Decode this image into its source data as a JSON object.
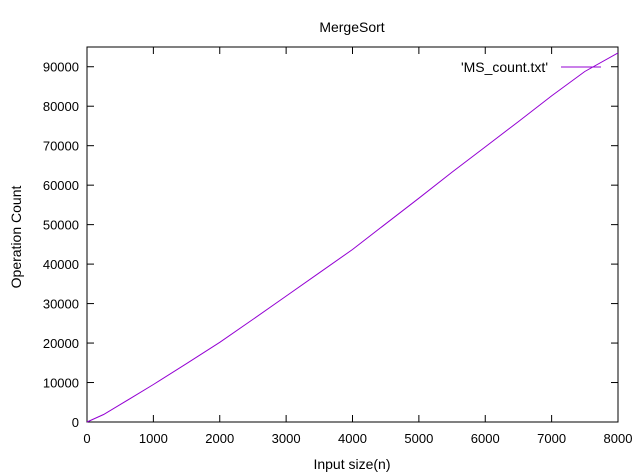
{
  "chart_data": {
    "type": "line",
    "title": "MergeSort",
    "xlabel": "Input size(n)",
    "ylabel": "Operation Count",
    "xlim": [
      0,
      8000
    ],
    "ylim": [
      0,
      95000
    ],
    "xticks": [
      0,
      1000,
      2000,
      3000,
      4000,
      5000,
      6000,
      7000,
      8000
    ],
    "yticks": [
      0,
      10000,
      20000,
      30000,
      40000,
      50000,
      60000,
      70000,
      80000,
      90000
    ],
    "grid": false,
    "legend_position": "top-right",
    "series": [
      {
        "name": "'MS_count.txt'",
        "color": "#9400d3",
        "x": [
          0,
          250,
          500,
          1000,
          1500,
          2000,
          2500,
          3000,
          3500,
          4000,
          4500,
          5000,
          5500,
          6000,
          6500,
          7000,
          7500,
          8000
        ],
        "y": [
          0,
          1900,
          4400,
          9500,
          14800,
          20200,
          26000,
          31900,
          37800,
          43700,
          50200,
          56700,
          63300,
          69700,
          76100,
          82600,
          88800,
          93500
        ]
      }
    ]
  }
}
